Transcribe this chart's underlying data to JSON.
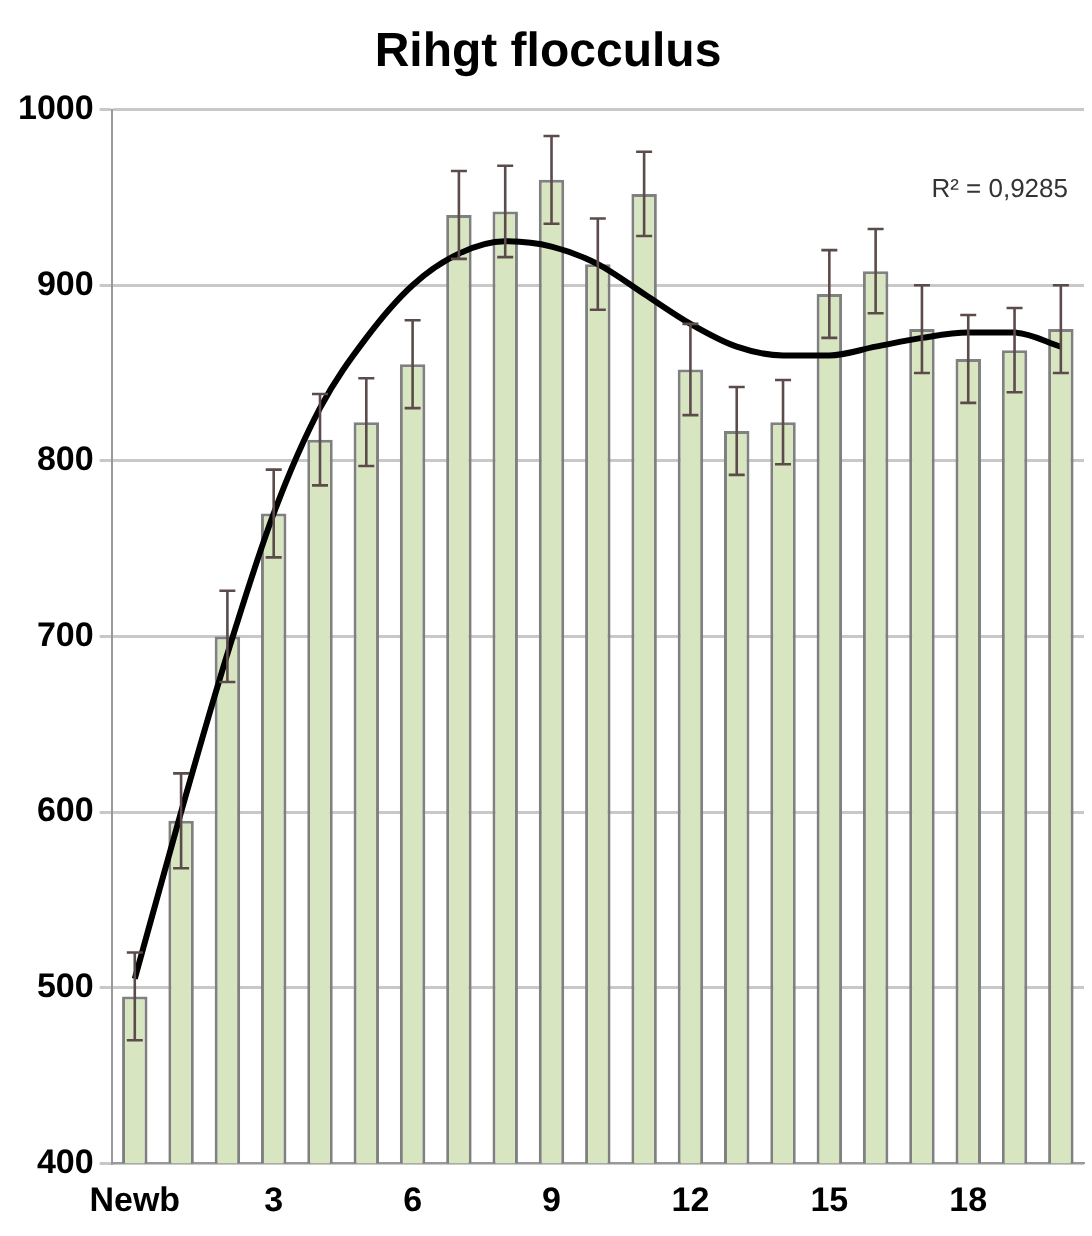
{
  "chart_data": {
    "type": "bar",
    "title": "Rihgt flocculus",
    "categories": [
      "Newb",
      null,
      null,
      "3",
      null,
      null,
      "6",
      null,
      null,
      "9",
      null,
      null,
      "12",
      null,
      null,
      "15",
      null,
      null,
      "18",
      null,
      null
    ],
    "series": [
      {
        "color": "#d7e6c1",
        "values": [
          495,
          595,
          700,
          770,
          812,
          822,
          855,
          940,
          942,
          960,
          912,
          952,
          852,
          817,
          822,
          895,
          908,
          875,
          858,
          863,
          875
        ],
        "errors": [
          25,
          27,
          26,
          25,
          26,
          25,
          25,
          25,
          26,
          25,
          26,
          24,
          26,
          25,
          24,
          25,
          24,
          25,
          25,
          24,
          25
        ]
      },
      {
        "type": "line",
        "color": "#000000",
        "values": [
          505,
          600,
          690,
          770,
          830,
          870,
          900,
          918,
          925,
          922,
          912,
          895,
          878,
          865,
          860,
          860,
          865,
          870,
          873,
          873,
          865
        ],
        "marker": "none",
        "line_style": "solid"
      }
    ],
    "ylim": [
      400,
      1000
    ],
    "yticks": [
      400,
      500,
      600,
      700,
      800,
      900,
      1000
    ],
    "grid": "y",
    "legend": false,
    "annotations": [
      "R² = 0,9285"
    ]
  }
}
